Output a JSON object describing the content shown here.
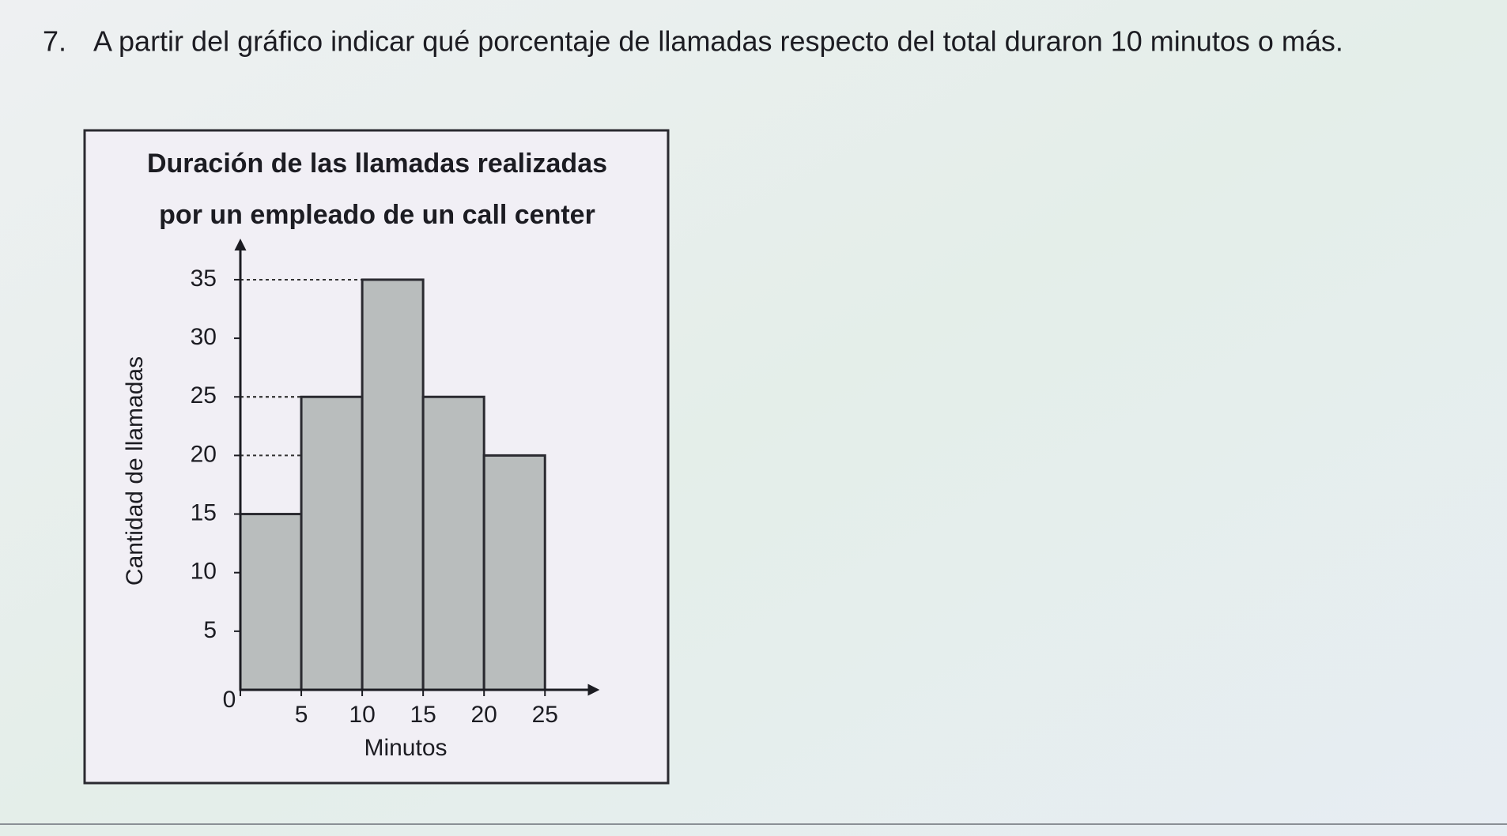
{
  "question": {
    "number": "7.",
    "text": "A partir del gráfico indicar qué porcentaje de llamadas respecto del total duraron 10 minutos o más."
  },
  "chart_data": {
    "type": "histogram",
    "title": [
      "Duración de las llamadas realizadas",
      "por un empleado de un call center"
    ],
    "x_label": "Minutos",
    "y_label": "Cantidad de llamadas",
    "bins": [
      0,
      5,
      10,
      15,
      20,
      25
    ],
    "values": [
      15,
      25,
      35,
      25,
      20
    ],
    "color": "#b9bdbd",
    "xlim": [
      0,
      29
    ],
    "ylim": [
      0,
      38
    ],
    "xticks": [
      0,
      5,
      10,
      15,
      20,
      25
    ],
    "yticks": [
      5,
      10,
      15,
      20,
      25,
      30,
      35
    ]
  }
}
